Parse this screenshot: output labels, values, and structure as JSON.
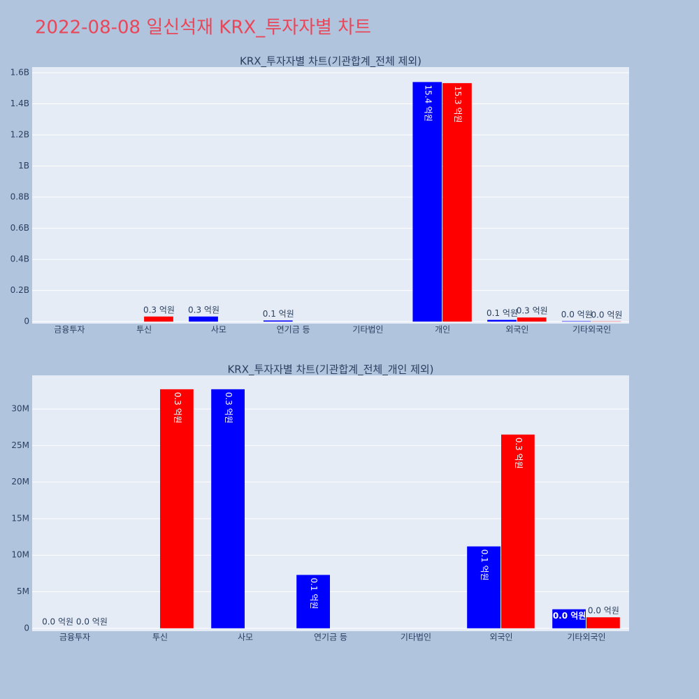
{
  "title": "2022-08-08 일신석재 KRX_투자자별 차트",
  "chart_data": [
    {
      "type": "bar",
      "title": "KRX_투자자별 차트(기관합계_전체 제외)",
      "categories": [
        "금융투자",
        "투신",
        "사모",
        "연기금 등",
        "기타법인",
        "개인",
        "외국인",
        "기타외국인"
      ],
      "series": [
        {
          "color": "#0000ff",
          "values": [
            0,
            null,
            32700000,
            7300000,
            null,
            1540000000,
            11200000,
            2600000
          ],
          "value_labels": [
            null,
            null,
            "0.3 억원",
            "0.1 억원",
            null,
            "15.4 억원",
            "0.1 억원",
            "0.0 억원"
          ]
        },
        {
          "color": "#ff0000",
          "values": [
            0,
            32700000,
            null,
            null,
            null,
            1533000000,
            26500000,
            1500000
          ],
          "value_labels": [
            null,
            "0.3 억원",
            null,
            null,
            null,
            "15.3 억원",
            "0.3 억원",
            "0.0 억원"
          ]
        }
      ],
      "ylim": [
        -13000000,
        1636000000
      ],
      "yticks": [
        0,
        {
          "value": 200000000,
          "label": "0.2B"
        },
        {
          "value": 400000000,
          "label": "0.4B"
        },
        {
          "value": 600000000,
          "label": "0.6B"
        },
        {
          "value": 800000000,
          "label": "0.8B"
        },
        {
          "value": 1000000000,
          "label": "1B"
        },
        {
          "value": 1200000000,
          "label": "1.2B"
        },
        {
          "value": 1400000000,
          "label": "1.4B"
        },
        {
          "value": 1600000000,
          "label": "1.6B"
        }
      ],
      "grid": true
    },
    {
      "type": "bar",
      "title": "KRX_투자자별 차트(기관합계_전체_개인 제외)",
      "categories": [
        "금융투자",
        "투신",
        "사모",
        "연기금 등",
        "기타법인",
        "외국인",
        "기타외국인"
      ],
      "series": [
        {
          "color": "#0000ff",
          "values": [
            0,
            null,
            32700000,
            7300000,
            null,
            11200000,
            2600000
          ],
          "value_labels": [
            "0.0 억원",
            null,
            "0.3 억원",
            "0.1 억원",
            null,
            "0.1 억원",
            "0.0 억원"
          ]
        },
        {
          "color": "#ff0000",
          "values": [
            0,
            32700000,
            null,
            null,
            null,
            26500000,
            1500000
          ],
          "value_labels": [
            "0.0 억원",
            "0.3 억원",
            null,
            null,
            null,
            "0.3 억원",
            "0.0 억원"
          ]
        }
      ],
      "ylim": [
        -400000,
        34600000
      ],
      "yticks": [
        0,
        {
          "value": 5000000,
          "label": "5M"
        },
        {
          "value": 10000000,
          "label": "10M"
        },
        {
          "value": 15000000,
          "label": "15M"
        },
        {
          "value": 20000000,
          "label": "20M"
        },
        {
          "value": 25000000,
          "label": "25M"
        },
        {
          "value": 30000000,
          "label": "30M"
        }
      ],
      "grid": true
    }
  ]
}
